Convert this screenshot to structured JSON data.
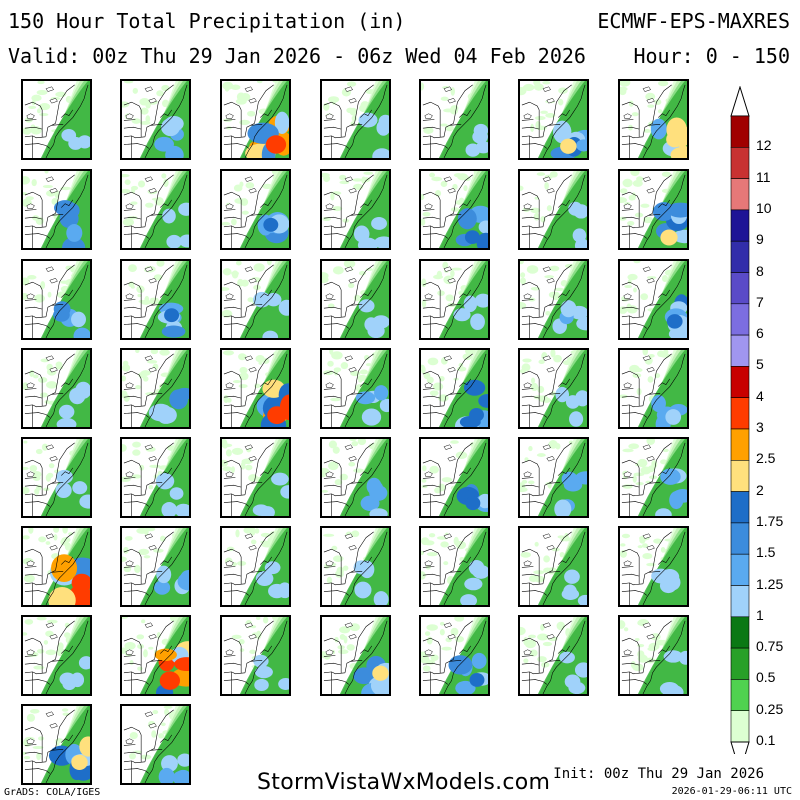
{
  "header": {
    "title_left": "150 Hour Total Precipitation (in)",
    "title_right": "ECMWF-EPS-MAXRES",
    "valid_left": "Valid: 00z Thu 29 Jan 2026 - 06z Wed 04 Feb 2026",
    "hour_right": "Hour: 0 - 150"
  },
  "legend": {
    "labels": [
      "12",
      "11",
      "10",
      "9",
      "8",
      "7",
      "6",
      "5",
      "4",
      "3",
      "2.5",
      "2",
      "1.75",
      "1.5",
      "1.25",
      "1",
      "0.75",
      "0.5",
      "0.25",
      "0.1"
    ],
    "colors": [
      "#a00000",
      "#c83232",
      "#e67878",
      "#1e1496",
      "#322daa",
      "#5a4bc8",
      "#7c6ee0",
      "#a096f0",
      "#c80000",
      "#ff3c00",
      "#ffa000",
      "#ffe07d",
      "#1e6ec8",
      "#3c8cdc",
      "#5aaaf0",
      "#a0d2fa",
      "#0a7814",
      "#28a028",
      "#50d250",
      "#dcffd2"
    ]
  },
  "panels": {
    "rows": 8,
    "columns": 7,
    "count": 51,
    "intensity": [
      [
        0.1,
        0.4,
        0.95,
        0.35,
        0.3,
        0.7,
        0.75
      ],
      [
        0.55,
        0.2,
        0.6,
        0.35,
        0.6,
        0.2,
        0.75
      ],
      [
        0.5,
        0.6,
        0.3,
        0.25,
        0.3,
        0.4,
        0.65
      ],
      [
        0.35,
        0.55,
        0.9,
        0.4,
        0.6,
        0.3,
        0.45
      ],
      [
        0.35,
        0.3,
        0.25,
        0.4,
        0.6,
        0.45,
        0.45
      ],
      [
        0.95,
        0.45,
        0.3,
        0.35,
        0.3,
        0.25,
        0.3
      ],
      [
        0.2,
        0.95,
        0.3,
        0.7,
        0.6,
        0.25,
        0.35
      ],
      [
        0.7,
        0.4
      ]
    ]
  },
  "footer": {
    "site": "StormVistaWxModels.com",
    "init": "Init: 00z Thu 29 Jan 2026",
    "stamp": "2026-01-29-06:11 UTC",
    "grads": "GrADS: COLA/IGES"
  }
}
